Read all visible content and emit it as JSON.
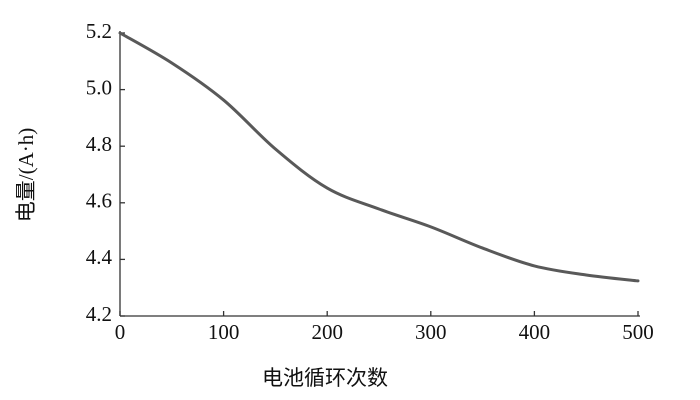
{
  "chart_data": {
    "type": "line",
    "x_label": "电池循环次数",
    "y_label": "电量/(A·h)",
    "x": [
      0,
      50,
      100,
      150,
      200,
      250,
      300,
      350,
      400,
      450,
      500
    ],
    "series": [
      {
        "name": "电量",
        "color": "#595959",
        "values": [
          5.2,
          5.094,
          4.963,
          4.79,
          4.652,
          4.578,
          4.515,
          4.44,
          4.377,
          4.345,
          4.324
        ]
      }
    ],
    "xlim": [
      0,
      500
    ],
    "xticks": [
      0,
      100,
      200,
      300,
      400,
      500
    ],
    "ylim": [
      4.2,
      5.2
    ],
    "yticks": [
      4.2,
      4.4,
      4.6,
      4.8,
      {
        "value": 5,
        "label": "5.0"
      },
      5.2
    ],
    "grid": false,
    "legend": false
  }
}
